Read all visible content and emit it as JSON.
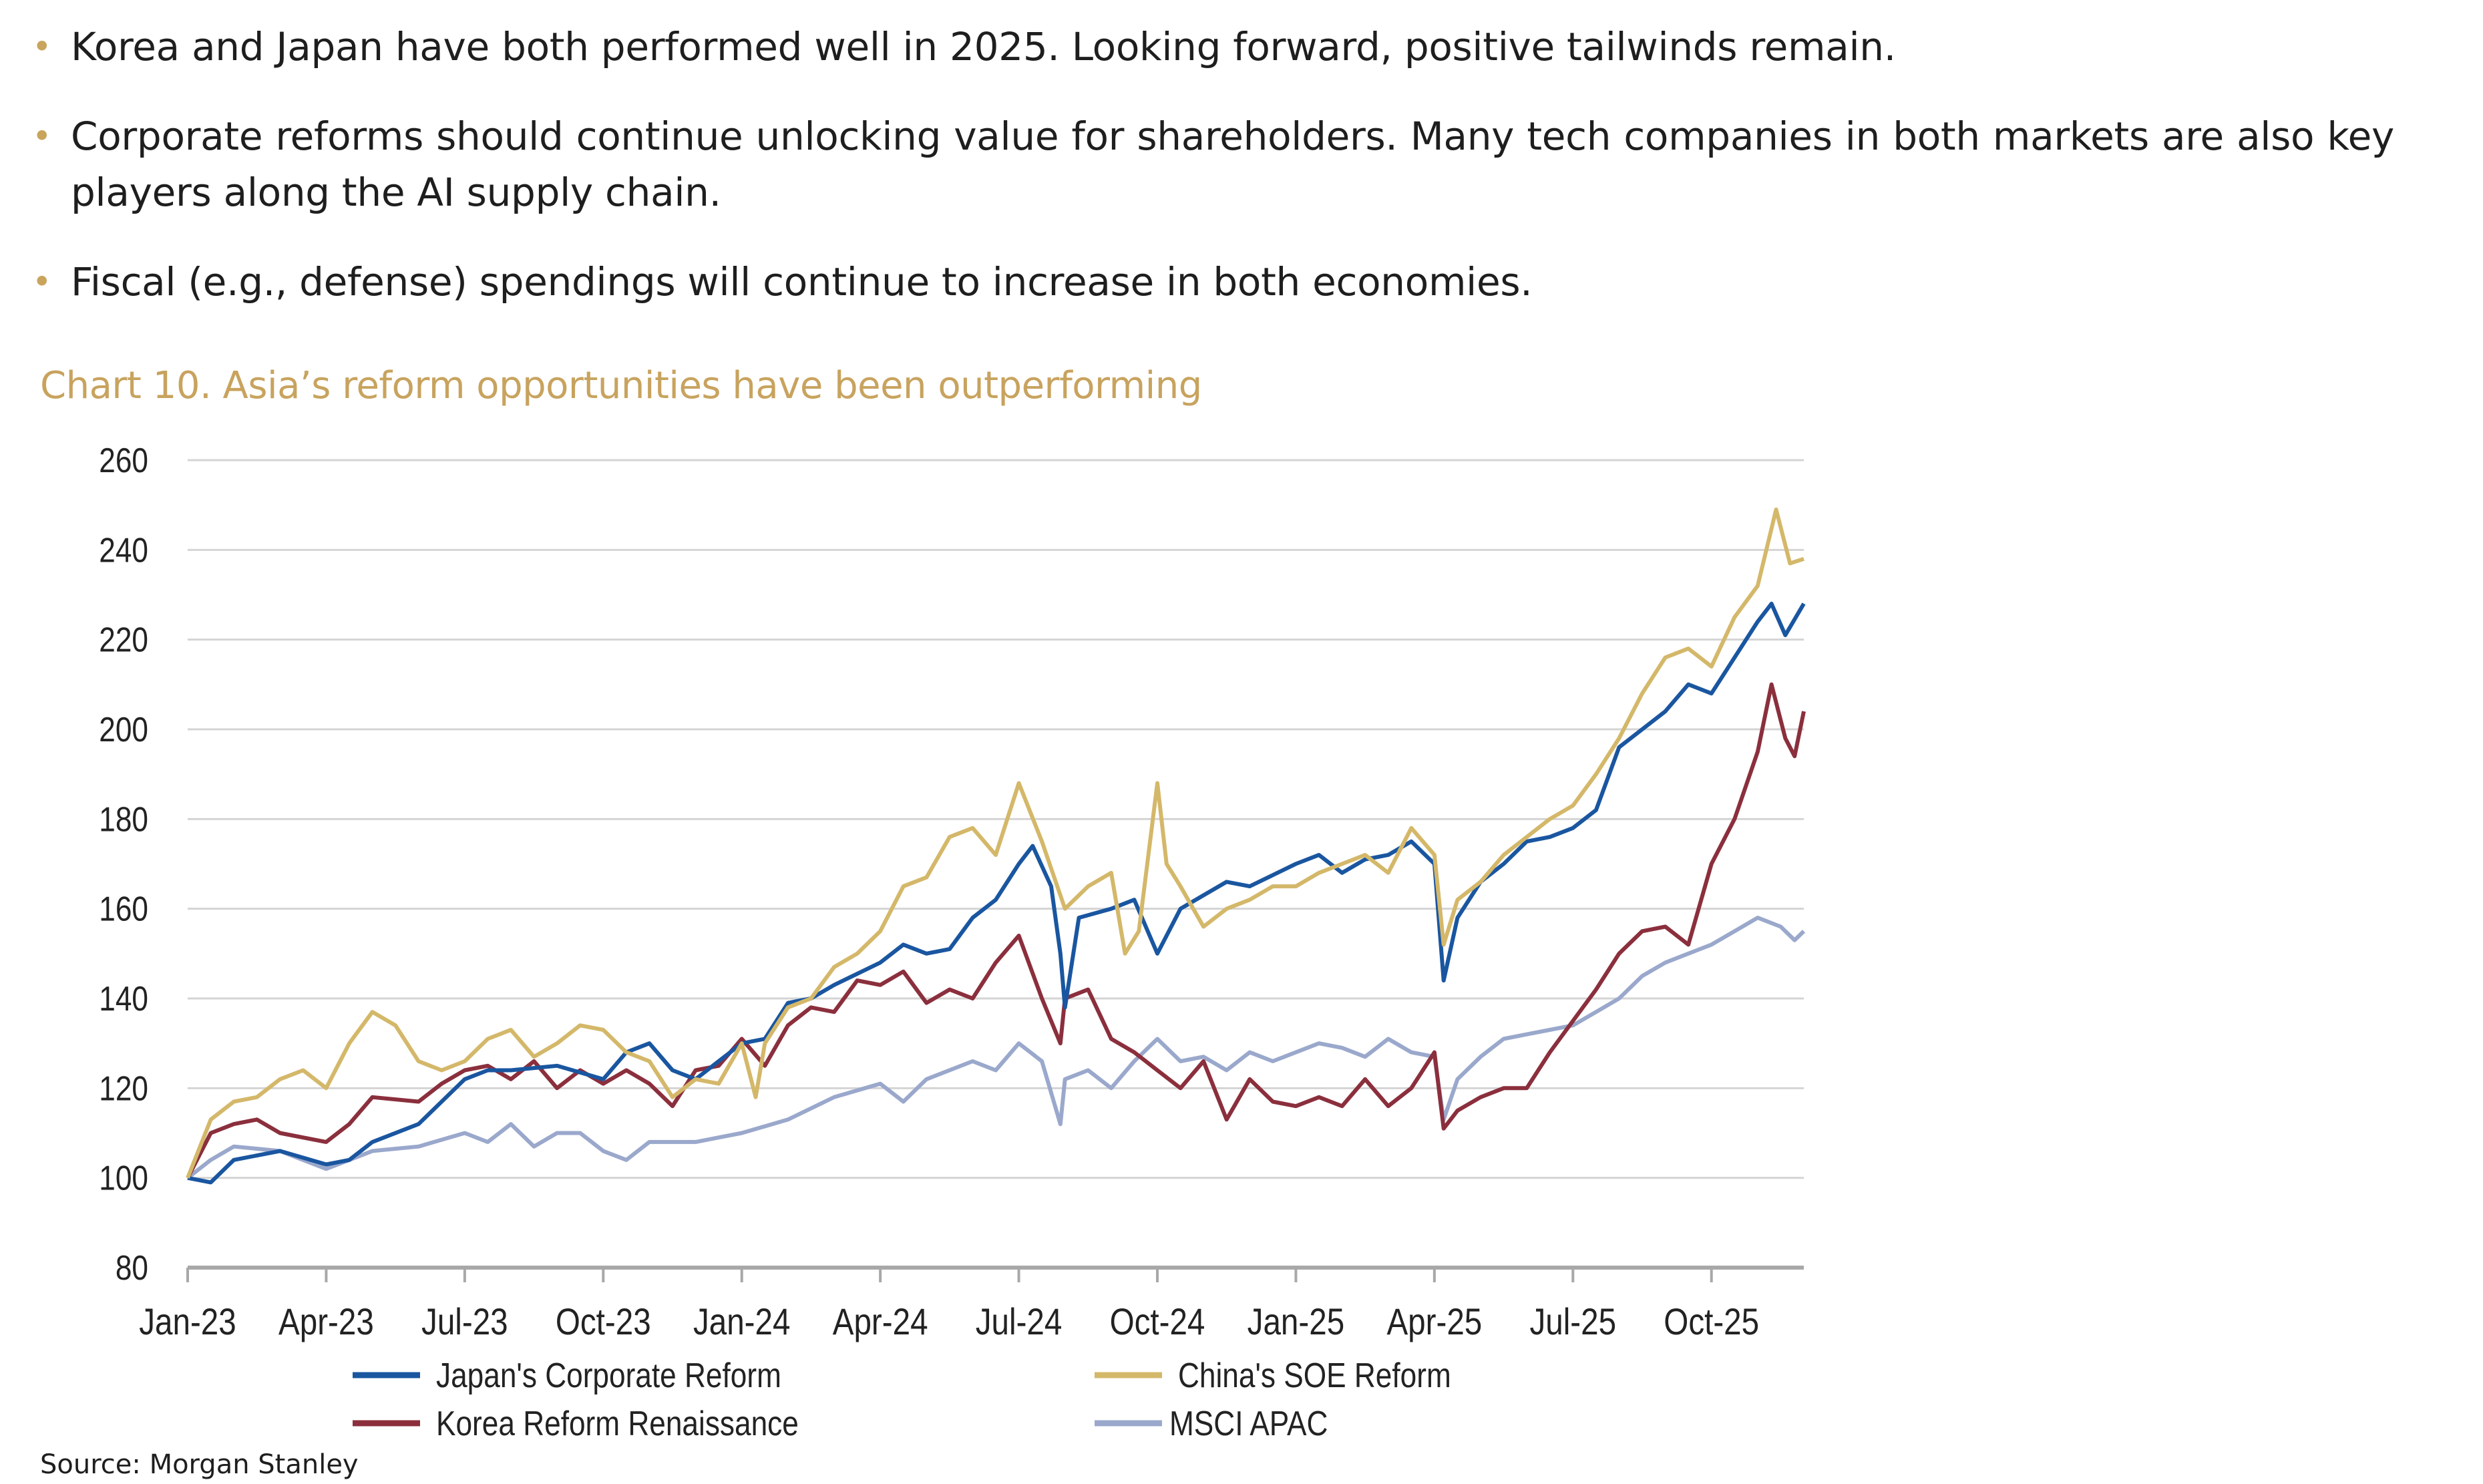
{
  "bullets": [
    "Korea and Japan have both performed well in 2025. Looking forward, positive tailwinds remain.",
    "Corporate reforms should continue unlocking value for shareholders. Many tech companies in both markets are also key players along the AI supply chain.",
    "Fiscal (e.g., defense) spendings will continue to increase in both economies."
  ],
  "source": "Source: Morgan Stanley",
  "chart_data": {
    "type": "line",
    "title": "Chart 10. Asia’s reform opportunities have been outperforming",
    "xlabel": "",
    "ylabel": "",
    "ylim": [
      80,
      260
    ],
    "yticks": [
      80,
      100,
      120,
      140,
      160,
      180,
      200,
      220,
      240,
      260
    ],
    "x_unit": "months since Jan-23",
    "xticks": [
      0,
      3,
      6,
      9,
      12,
      15,
      18,
      21,
      24,
      27,
      30,
      33
    ],
    "xtick_labels": [
      "Jan-23",
      "Apr-23",
      "Jul-23",
      "Oct-23",
      "Jan-24",
      "Apr-24",
      "Jul-24",
      "Oct-24",
      "Jan-25",
      "Apr-25",
      "Jul-25",
      "Oct-25"
    ],
    "xlim": [
      0,
      35
    ],
    "grid": true,
    "legend_position": "bottom",
    "series": [
      {
        "name": "Japan's Corporate Reform",
        "color": "#1a56a0",
        "points": [
          [
            0,
            100
          ],
          [
            0.5,
            99
          ],
          [
            1,
            104
          ],
          [
            2,
            106
          ],
          [
            3,
            103
          ],
          [
            3.5,
            104
          ],
          [
            4,
            108
          ],
          [
            5,
            112
          ],
          [
            6,
            122
          ],
          [
            6.5,
            124
          ],
          [
            7,
            124
          ],
          [
            8,
            125
          ],
          [
            9,
            122
          ],
          [
            9.5,
            128
          ],
          [
            10,
            130
          ],
          [
            10.5,
            124
          ],
          [
            11,
            122
          ],
          [
            11.5,
            126
          ],
          [
            12,
            130
          ],
          [
            12.5,
            131
          ],
          [
            13,
            139
          ],
          [
            13.5,
            140
          ],
          [
            14,
            143
          ],
          [
            15,
            148
          ],
          [
            15.5,
            152
          ],
          [
            16,
            150
          ],
          [
            16.5,
            151
          ],
          [
            17,
            158
          ],
          [
            17.5,
            162
          ],
          [
            18,
            170
          ],
          [
            18.3,
            174
          ],
          [
            18.7,
            165
          ],
          [
            18.9,
            150
          ],
          [
            19,
            138
          ],
          [
            19.3,
            158
          ],
          [
            20,
            160
          ],
          [
            20.5,
            162
          ],
          [
            21,
            150
          ],
          [
            21.5,
            160
          ],
          [
            22,
            163
          ],
          [
            22.5,
            166
          ],
          [
            23,
            165
          ],
          [
            24,
            170
          ],
          [
            24.5,
            172
          ],
          [
            25,
            168
          ],
          [
            25.5,
            171
          ],
          [
            26,
            172
          ],
          [
            26.5,
            175
          ],
          [
            27,
            170
          ],
          [
            27.2,
            144
          ],
          [
            27.5,
            158
          ],
          [
            28,
            166
          ],
          [
            28.5,
            170
          ],
          [
            29,
            175
          ],
          [
            29.5,
            176
          ],
          [
            30,
            178
          ],
          [
            30.5,
            182
          ],
          [
            31,
            196
          ],
          [
            31.5,
            200
          ],
          [
            32,
            204
          ],
          [
            32.5,
            210
          ],
          [
            33,
            208
          ],
          [
            33.5,
            216
          ],
          [
            34,
            224
          ],
          [
            34.3,
            228
          ],
          [
            34.6,
            221
          ],
          [
            35,
            228
          ]
        ]
      },
      {
        "name": "China's SOE Reform",
        "color": "#d4b86a",
        "points": [
          [
            0,
            100
          ],
          [
            0.5,
            113
          ],
          [
            1,
            117
          ],
          [
            1.5,
            118
          ],
          [
            2,
            122
          ],
          [
            2.5,
            124
          ],
          [
            3,
            120
          ],
          [
            3.5,
            130
          ],
          [
            4,
            137
          ],
          [
            4.5,
            134
          ],
          [
            5,
            126
          ],
          [
            5.5,
            124
          ],
          [
            6,
            126
          ],
          [
            6.5,
            131
          ],
          [
            7,
            133
          ],
          [
            7.5,
            127
          ],
          [
            8,
            130
          ],
          [
            8.5,
            134
          ],
          [
            9,
            133
          ],
          [
            9.5,
            128
          ],
          [
            10,
            126
          ],
          [
            10.5,
            118
          ],
          [
            11,
            122
          ],
          [
            11.5,
            121
          ],
          [
            12,
            130
          ],
          [
            12.3,
            118
          ],
          [
            12.5,
            130
          ],
          [
            13,
            138
          ],
          [
            13.5,
            140
          ],
          [
            14,
            147
          ],
          [
            14.5,
            150
          ],
          [
            15,
            155
          ],
          [
            15.5,
            165
          ],
          [
            16,
            167
          ],
          [
            16.5,
            176
          ],
          [
            17,
            178
          ],
          [
            17.5,
            172
          ],
          [
            18,
            188
          ],
          [
            18.5,
            175
          ],
          [
            19,
            160
          ],
          [
            19.5,
            165
          ],
          [
            20,
            168
          ],
          [
            20.3,
            150
          ],
          [
            20.6,
            155
          ],
          [
            21,
            188
          ],
          [
            21.2,
            170
          ],
          [
            21.5,
            165
          ],
          [
            22,
            156
          ],
          [
            22.5,
            160
          ],
          [
            23,
            162
          ],
          [
            23.5,
            165
          ],
          [
            24,
            165
          ],
          [
            24.5,
            168
          ],
          [
            25,
            170
          ],
          [
            25.5,
            172
          ],
          [
            26,
            168
          ],
          [
            26.5,
            178
          ],
          [
            27,
            172
          ],
          [
            27.2,
            152
          ],
          [
            27.5,
            162
          ],
          [
            28,
            166
          ],
          [
            28.5,
            172
          ],
          [
            29,
            176
          ],
          [
            29.5,
            180
          ],
          [
            30,
            183
          ],
          [
            30.5,
            190
          ],
          [
            31,
            198
          ],
          [
            31.5,
            208
          ],
          [
            32,
            216
          ],
          [
            32.5,
            218
          ],
          [
            33,
            214
          ],
          [
            33.5,
            225
          ],
          [
            34,
            232
          ],
          [
            34.4,
            249
          ],
          [
            34.7,
            237
          ],
          [
            35,
            238
          ]
        ]
      },
      {
        "name": "Korea Reform Renaissance",
        "color": "#8b2f3d",
        "points": [
          [
            0,
            100
          ],
          [
            0.5,
            110
          ],
          [
            1,
            112
          ],
          [
            1.5,
            113
          ],
          [
            2,
            110
          ],
          [
            3,
            108
          ],
          [
            3.5,
            112
          ],
          [
            4,
            118
          ],
          [
            5,
            117
          ],
          [
            5.5,
            121
          ],
          [
            6,
            124
          ],
          [
            6.5,
            125
          ],
          [
            7,
            122
          ],
          [
            7.5,
            126
          ],
          [
            8,
            120
          ],
          [
            8.5,
            124
          ],
          [
            9,
            121
          ],
          [
            9.5,
            124
          ],
          [
            10,
            121
          ],
          [
            10.5,
            116
          ],
          [
            11,
            124
          ],
          [
            11.5,
            125
          ],
          [
            12,
            131
          ],
          [
            12.5,
            125
          ],
          [
            13,
            134
          ],
          [
            13.5,
            138
          ],
          [
            14,
            137
          ],
          [
            14.5,
            144
          ],
          [
            15,
            143
          ],
          [
            15.5,
            146
          ],
          [
            16,
            139
          ],
          [
            16.5,
            142
          ],
          [
            17,
            140
          ],
          [
            17.5,
            148
          ],
          [
            18,
            154
          ],
          [
            18.5,
            140
          ],
          [
            18.9,
            130
          ],
          [
            19,
            140
          ],
          [
            19.5,
            142
          ],
          [
            20,
            131
          ],
          [
            20.5,
            128
          ],
          [
            21,
            124
          ],
          [
            21.5,
            120
          ],
          [
            22,
            126
          ],
          [
            22.5,
            113
          ],
          [
            23,
            122
          ],
          [
            23.5,
            117
          ],
          [
            24,
            116
          ],
          [
            24.5,
            118
          ],
          [
            25,
            116
          ],
          [
            25.5,
            122
          ],
          [
            26,
            116
          ],
          [
            26.5,
            120
          ],
          [
            27,
            128
          ],
          [
            27.2,
            111
          ],
          [
            27.5,
            115
          ],
          [
            28,
            118
          ],
          [
            28.5,
            120
          ],
          [
            29,
            120
          ],
          [
            29.5,
            128
          ],
          [
            30,
            135
          ],
          [
            30.5,
            142
          ],
          [
            31,
            150
          ],
          [
            31.5,
            155
          ],
          [
            32,
            156
          ],
          [
            32.5,
            152
          ],
          [
            33,
            170
          ],
          [
            33.5,
            180
          ],
          [
            34,
            195
          ],
          [
            34.3,
            210
          ],
          [
            34.6,
            198
          ],
          [
            34.8,
            194
          ],
          [
            35,
            204
          ]
        ]
      },
      {
        "name": "MSCI APAC",
        "color": "#9aa8cc",
        "points": [
          [
            0,
            100
          ],
          [
            0.5,
            104
          ],
          [
            1,
            107
          ],
          [
            2,
            106
          ],
          [
            3,
            102
          ],
          [
            3.5,
            104
          ],
          [
            4,
            106
          ],
          [
            5,
            107
          ],
          [
            6,
            110
          ],
          [
            6.5,
            108
          ],
          [
            7,
            112
          ],
          [
            7.5,
            107
          ],
          [
            8,
            110
          ],
          [
            8.5,
            110
          ],
          [
            9,
            106
          ],
          [
            9.5,
            104
          ],
          [
            10,
            108
          ],
          [
            11,
            108
          ],
          [
            11.5,
            109
          ],
          [
            12,
            110
          ],
          [
            13,
            113
          ],
          [
            14,
            118
          ],
          [
            15,
            121
          ],
          [
            15.5,
            117
          ],
          [
            16,
            122
          ],
          [
            17,
            126
          ],
          [
            17.5,
            124
          ],
          [
            18,
            130
          ],
          [
            18.5,
            126
          ],
          [
            18.9,
            112
          ],
          [
            19,
            122
          ],
          [
            19.5,
            124
          ],
          [
            20,
            120
          ],
          [
            20.5,
            126
          ],
          [
            21,
            131
          ],
          [
            21.5,
            126
          ],
          [
            22,
            127
          ],
          [
            22.5,
            124
          ],
          [
            23,
            128
          ],
          [
            23.5,
            126
          ],
          [
            24,
            128
          ],
          [
            24.5,
            130
          ],
          [
            25,
            129
          ],
          [
            25.5,
            127
          ],
          [
            26,
            131
          ],
          [
            26.5,
            128
          ],
          [
            27,
            127
          ],
          [
            27.2,
            113
          ],
          [
            27.5,
            122
          ],
          [
            28,
            127
          ],
          [
            28.5,
            131
          ],
          [
            29,
            132
          ],
          [
            29.5,
            133
          ],
          [
            30,
            134
          ],
          [
            30.5,
            137
          ],
          [
            31,
            140
          ],
          [
            31.5,
            145
          ],
          [
            32,
            148
          ],
          [
            32.5,
            150
          ],
          [
            33,
            152
          ],
          [
            33.5,
            155
          ],
          [
            34,
            158
          ],
          [
            34.5,
            156
          ],
          [
            34.8,
            153
          ],
          [
            35,
            155
          ]
        ]
      }
    ]
  }
}
